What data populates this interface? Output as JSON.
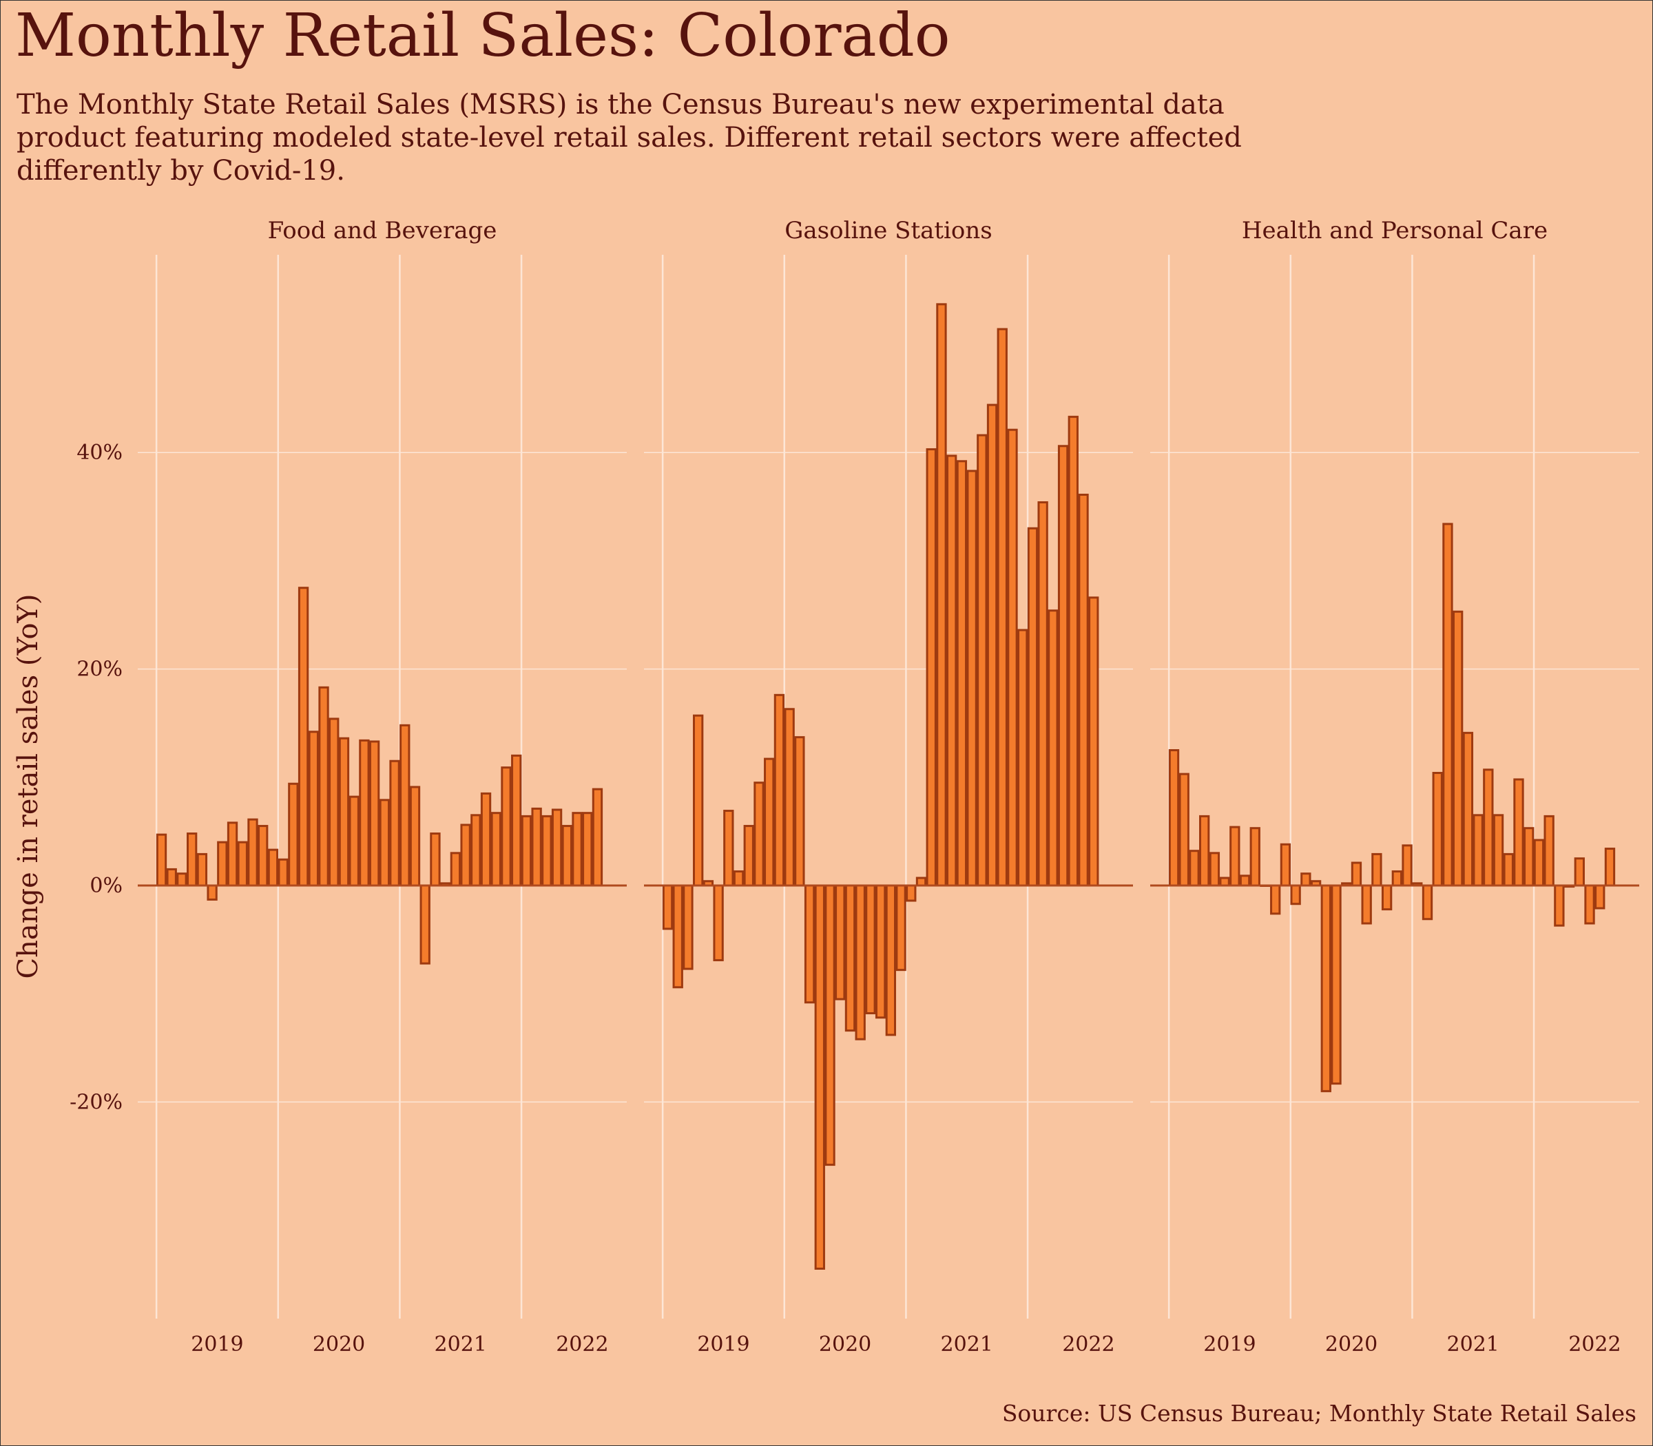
{
  "title": "Monthly Retail Sales: Colorado",
  "subtitle": "The Monthly State Retail Sales (MSRS) is the Census Bureau's new experimental data product featuring modeled state-level retail sales. Different retail sectors were affected differently by Covid-19.",
  "caption": "Source: US Census Bureau; Monthly State Retail Sales",
  "colors": {
    "background": "#f9c5a0",
    "bar_fill": "#f47c2c",
    "bar_stroke": "#9e3a10",
    "grid": "#fde6d6",
    "zero_line": "#b04a1e",
    "text": "#57130e"
  },
  "chart_data": {
    "type": "bar",
    "ylabel": "Change in retail sales (YoY)",
    "ylim": [
      -40,
      57
    ],
    "y_ticks": [
      -20,
      0,
      20,
      40
    ],
    "y_tick_labels": [
      "-20%",
      "0%",
      "20%",
      "40%"
    ],
    "x_ticks": [
      "2019",
      "2020",
      "2021",
      "2022"
    ],
    "grid": true,
    "first_month": "2019-01",
    "panels": [
      {
        "name": "Food and Beverage",
        "values": [
          4.7,
          1.5,
          1.1,
          4.8,
          2.9,
          -1.3,
          4.0,
          5.8,
          4.0,
          6.1,
          5.5,
          3.3,
          2.4,
          9.4,
          27.5,
          14.2,
          18.3,
          15.4,
          13.6,
          8.2,
          13.4,
          13.3,
          7.9,
          11.5,
          14.8,
          9.1,
          -7.2,
          4.8,
          0.2,
          3.0,
          5.6,
          6.5,
          8.5,
          6.7,
          10.9,
          12.0,
          6.4,
          7.1,
          6.4,
          7.0,
          5.5,
          6.7,
          6.7,
          8.9
        ]
      },
      {
        "name": "Gasoline Stations",
        "values": [
          -4.0,
          -9.4,
          -7.7,
          15.7,
          0.4,
          -6.9,
          6.9,
          1.3,
          5.5,
          9.5,
          11.7,
          17.6,
          16.3,
          13.7,
          -10.8,
          -35.4,
          -25.8,
          -10.5,
          -13.4,
          -14.2,
          -11.8,
          -12.2,
          -13.8,
          -7.8,
          -1.4,
          0.7,
          40.3,
          53.7,
          39.7,
          39.2,
          38.3,
          41.6,
          44.4,
          51.4,
          42.1,
          23.6,
          33.0,
          35.4,
          25.4,
          40.6,
          43.3,
          36.1,
          26.6
        ]
      },
      {
        "name": "Health and Personal Care",
        "values": [
          12.5,
          10.3,
          3.2,
          6.4,
          3.0,
          0.7,
          5.4,
          0.9,
          5.3,
          0,
          -2.6,
          3.8,
          -1.7,
          1.1,
          0.4,
          -19.0,
          -18.3,
          0.2,
          2.1,
          -3.5,
          2.9,
          -2.2,
          1.3,
          3.7,
          0.2,
          -3.1,
          10.4,
          33.4,
          25.3,
          14.1,
          6.5,
          10.7,
          6.5,
          2.9,
          9.8,
          5.3,
          4.2,
          6.4,
          -3.7,
          -0.1,
          2.5,
          -3.5,
          -2.1,
          3.4
        ]
      }
    ]
  }
}
